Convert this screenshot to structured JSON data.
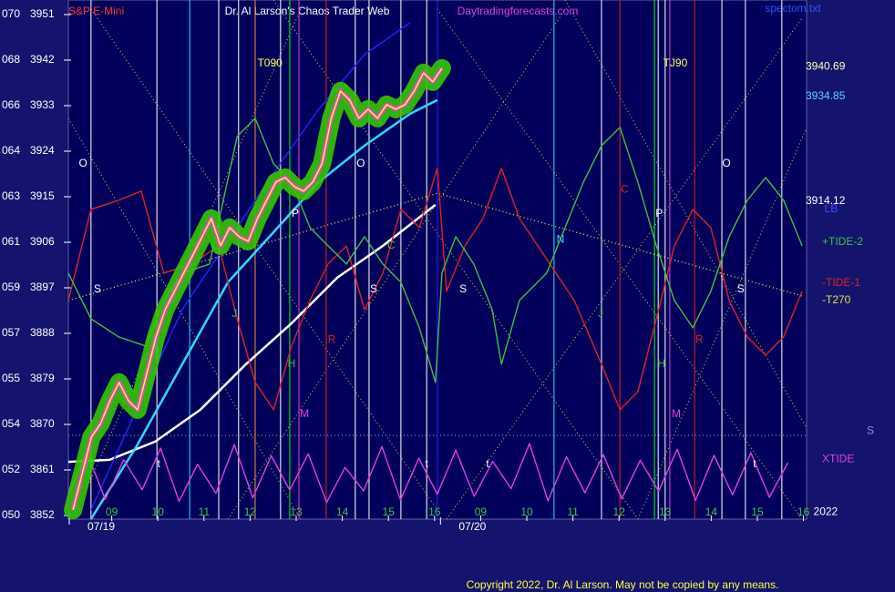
{
  "chart_data": {
    "type": "line",
    "subtitle": "S&P E-Mini",
    "title": "Dr. Al Larson's Chaos Trader Web",
    "source": "Daytradingforecasts.com",
    "file_label": "spectom.txt",
    "copyright": "Copyright 2022, Dr. Al Larson. May not be copied by any means.",
    "xlim": [
      0,
      16
    ],
    "ylim": [
      3852,
      3951
    ],
    "yticks": [
      3852,
      3861,
      3870,
      3879,
      3888,
      3897,
      3906,
      3915,
      3924,
      3933,
      3942,
      3951
    ],
    "ytick_codes": [
      "050",
      "052",
      "054",
      "055",
      "057",
      "059",
      "061",
      "063",
      "064",
      "066",
      "068",
      "070"
    ],
    "xticks": [
      {
        "value": 1,
        "label": "09"
      },
      {
        "value": 2,
        "label": "10"
      },
      {
        "value": 3,
        "label": "11"
      },
      {
        "value": 4,
        "label": "12"
      },
      {
        "value": 5,
        "label": "13"
      },
      {
        "value": 6,
        "label": "14"
      },
      {
        "value": 7,
        "label": "15"
      },
      {
        "value": 8,
        "label": "16"
      },
      {
        "value": 9,
        "label": "09"
      },
      {
        "value": 10,
        "label": "10"
      },
      {
        "value": 11,
        "label": "11"
      },
      {
        "value": 12,
        "label": "12"
      },
      {
        "value": 13,
        "label": "13"
      },
      {
        "value": 14,
        "label": "14"
      },
      {
        "value": 15,
        "label": "15"
      },
      {
        "value": 16,
        "label": "16"
      }
    ],
    "date_ticks": [
      {
        "value": 0,
        "label": "07/19"
      },
      {
        "value": 8.05,
        "label": "07/20"
      }
    ],
    "series": [
      {
        "color": "#ffffff",
        "x": [
          0.06,
          0.95,
          1.94,
          2.92,
          3.91,
          4.9,
          5.89,
          6.88,
          8.02
        ],
        "values": [
          3862.6,
          3863.0,
          3866.6,
          3872.9,
          3881.9,
          3890.0,
          3899.0,
          3905.3,
          3913.4
        ]
      },
      {
        "color": "#2424ff",
        "x": [
          0.55,
          2.53,
          4.51,
          5.49,
          6.48,
          7.47
        ],
        "values": [
          3853.1,
          3892.7,
          3919.7,
          3932.3,
          3943.1,
          3949.4
        ]
      },
      {
        "color": "#30d8ff",
        "x": [
          0.55,
          1.54,
          2.53,
          3.52,
          4.51,
          5.49,
          6.48,
          7.47,
          8.06
        ],
        "values": [
          3851.3,
          3865.7,
          3881.9,
          3898.1,
          3908.0,
          3917.9,
          3925.1,
          3931.4,
          3934.1
        ]
      },
      {
        "name": "-T270",
        "color": "#e0e040",
        "dotted": true,
        "x": [
          0.06,
          8.06,
          15.97
        ],
        "values": [
          3894.5,
          3915.7,
          3895.4
        ]
      },
      {
        "name": "-TIDE-1",
        "color": "#e02020",
        "x": [
          0.06,
          0.55,
          1.15,
          1.64,
          2.13,
          2.73,
          3.32,
          3.72,
          4.11,
          4.51,
          4.9,
          5.3,
          5.69,
          6.09,
          6.48,
          6.88,
          7.27,
          7.67,
          8.06,
          8.26,
          8.66,
          9.05,
          9.45,
          9.84,
          10.24,
          10.63,
          11.03,
          11.62,
          12.02,
          12.41,
          12.81,
          13.2,
          13.6,
          13.99,
          14.39,
          14.78,
          15.18,
          15.57,
          15.97
        ],
        "values": [
          3894.5,
          3912.5,
          3914.3,
          3916.1,
          3899.9,
          3901.7,
          3905.3,
          3890.9,
          3878.3,
          3872.9,
          3885.5,
          3894.5,
          3901.7,
          3905.3,
          3892.7,
          3899.9,
          3912.5,
          3908.9,
          3920.6,
          3896.3,
          3905.3,
          3910.7,
          3920.6,
          3910.7,
          3905.3,
          3899.9,
          3894.5,
          3881.9,
          3872.9,
          3876.5,
          3890.9,
          3905.3,
          3912.5,
          3908.9,
          3894.5,
          3887.3,
          3883.7,
          3887.3,
          3896.3
        ]
      },
      {
        "name": "+TIDE-2",
        "color": "#40c040",
        "x": [
          0.06,
          0.55,
          1.15,
          1.74,
          2.13,
          2.53,
          3.12,
          3.72,
          4.11,
          4.51,
          4.9,
          5.3,
          5.69,
          6.09,
          6.48,
          6.88,
          7.27,
          7.67,
          8.02,
          8.16,
          8.46,
          8.85,
          9.25,
          9.45,
          9.84,
          10.43,
          10.83,
          11.23,
          11.62,
          12.02,
          12.41,
          12.81,
          13.2,
          13.6,
          13.99,
          14.39,
          14.78,
          15.18,
          15.57,
          15.97
        ],
        "values": [
          3899.9,
          3890.9,
          3887.3,
          3885.5,
          3894.5,
          3899.9,
          3901.7,
          3926.9,
          3930.5,
          3921.5,
          3917.9,
          3908.9,
          3905.3,
          3901.7,
          3907.1,
          3901.7,
          3898.1,
          3889.1,
          3878.3,
          3899.9,
          3907.1,
          3901.7,
          3892.7,
          3881.9,
          3894.5,
          3899.9,
          3908.9,
          3917.9,
          3925.1,
          3928.7,
          3917.9,
          3905.3,
          3894.5,
          3889.1,
          3896.3,
          3907.1,
          3914.3,
          3918.8,
          3914.3,
          3905.3
        ]
      },
      {
        "name": "XTIDE",
        "color": "#e040e0",
        "x": [
          0.06,
          0.46,
          0.86,
          1.26,
          1.66,
          2.06,
          2.46,
          2.86,
          3.26,
          3.66,
          4.06,
          4.46,
          4.86,
          5.26,
          5.66,
          6.06,
          6.46,
          6.86,
          7.26,
          7.66,
          8.06,
          8.46,
          8.86,
          9.26,
          9.66,
          10.06,
          10.46,
          10.86,
          11.26,
          11.66,
          12.06,
          12.46,
          12.86,
          13.26,
          13.66,
          14.06,
          14.46,
          14.86,
          15.26,
          15.66
        ],
        "values": [
          3856.0,
          3864.5,
          3855.2,
          3863.0,
          3857.1,
          3865.3,
          3854.8,
          3862.1,
          3856.4,
          3866.0,
          3855.5,
          3863.8,
          3857.0,
          3864.2,
          3854.6,
          3861.5,
          3856.9,
          3865.6,
          3855.1,
          3863.3,
          3856.2,
          3864.9,
          3855.8,
          3862.7,
          3857.3,
          3866.2,
          3854.9,
          3863.6,
          3856.5,
          3864.0,
          3855.3,
          3862.9,
          3856.8,
          3865.1,
          3855.0,
          3863.9,
          3856.1,
          3864.4,
          3855.6,
          3862.4
        ]
      },
      {
        "color": "#ffff00",
        "glow": "#33c800",
        "x": [
          0.16,
          0.36,
          0.56,
          0.76,
          0.96,
          1.16,
          1.36,
          1.56,
          1.76,
          1.96,
          2.16,
          2.36,
          2.56,
          2.76,
          2.96,
          3.16,
          3.36,
          3.56,
          3.76,
          3.96,
          4.16,
          4.36,
          4.56,
          4.76,
          4.96,
          5.16,
          5.36,
          5.56,
          5.76,
          5.96,
          6.16,
          6.36,
          6.56,
          6.76,
          6.96,
          7.16,
          7.36,
          7.56,
          7.76,
          7.96,
          8.16
        ],
        "values": [
          3853.1,
          3860.3,
          3867.5,
          3870.2,
          3874.7,
          3878.3,
          3874.7,
          3872.9,
          3880.1,
          3887.3,
          3892.7,
          3896.3,
          3899.9,
          3903.5,
          3907.1,
          3910.7,
          3905.3,
          3908.9,
          3907.1,
          3906.2,
          3910.7,
          3914.3,
          3917.9,
          3918.8,
          3917.0,
          3916.1,
          3917.9,
          3921.5,
          3930.5,
          3935.9,
          3934.1,
          3930.5,
          3932.3,
          3930.5,
          3933.2,
          3932.3,
          3933.2,
          3935.9,
          3939.5,
          3937.7,
          3940.4
        ]
      }
    ],
    "level_labels": [
      {
        "value": 3940.69,
        "label": "3940.69",
        "color": "#ffffc0"
      },
      {
        "value": 3934.85,
        "label": "3934.85",
        "color": "#60d0ff"
      },
      {
        "value": 3914.12,
        "label": "3914.12",
        "color": "#ffffff"
      }
    ],
    "vlines": [
      {
        "x": 0.55,
        "color": "#ffffff"
      },
      {
        "x": 1.98,
        "color": "#ffffff"
      },
      {
        "x": 2.69,
        "color": "#30d8ff"
      },
      {
        "x": 3.32,
        "color": "#ffffff"
      },
      {
        "x": 3.75,
        "color": "#ffffff"
      },
      {
        "x": 4.11,
        "color": "#ff9020"
      },
      {
        "x": 4.66,
        "color": "#ffffff"
      },
      {
        "x": 4.86,
        "color": "#00ff00"
      },
      {
        "x": 5.06,
        "color": "#e040e0"
      },
      {
        "x": 5.65,
        "color": "#e02020"
      },
      {
        "x": 6.28,
        "color": "#ffffff"
      },
      {
        "x": 6.58,
        "color": "#ffffff"
      },
      {
        "x": 7.27,
        "color": "#ffffff"
      },
      {
        "x": 7.83,
        "color": "#ffffff"
      },
      {
        "x": 8.06,
        "color": "#2424ff"
      },
      {
        "x": 10.59,
        "color": "#30d8ff"
      },
      {
        "x": 11.62,
        "color": "#ffffff"
      },
      {
        "x": 12.02,
        "color": "#e02020"
      },
      {
        "x": 12.77,
        "color": "#00ff00"
      },
      {
        "x": 12.85,
        "color": "#ffffff"
      },
      {
        "x": 13.0,
        "color": "#ffffff"
      },
      {
        "x": 13.1,
        "color": "#e040e0"
      },
      {
        "x": 13.64,
        "color": "#e02020"
      },
      {
        "x": 14.23,
        "color": "#ffffff"
      },
      {
        "x": 14.74,
        "color": "#ffffff"
      },
      {
        "x": 15.53,
        "color": "#ffffff"
      }
    ],
    "annotations": [
      {
        "text": "O",
        "x": 0.38,
        "y": 3921.5,
        "color": "#ffffff"
      },
      {
        "text": "S",
        "x": 0.69,
        "y": 3896.7,
        "color": "#ffffff"
      },
      {
        "text": "t",
        "x": 2.02,
        "y": 3862.1,
        "color": "#ffffff"
      },
      {
        "text": "J",
        "x": 3.66,
        "y": 3891.8,
        "color": "#40c040"
      },
      {
        "text": "T090",
        "x": 4.43,
        "y": 3941.3,
        "color": "#ffff60"
      },
      {
        "text": "H",
        "x": 4.9,
        "y": 3881.9,
        "color": "#40c040"
      },
      {
        "text": "P",
        "x": 4.98,
        "y": 3911.6,
        "color": "#ffffff"
      },
      {
        "text": "M",
        "x": 5.18,
        "y": 3872.0,
        "color": "#e040e0"
      },
      {
        "text": "R",
        "x": 5.77,
        "y": 3886.7,
        "color": "#e02020"
      },
      {
        "text": "O",
        "x": 6.4,
        "y": 3921.5,
        "color": "#ffffff"
      },
      {
        "text": "S",
        "x": 6.68,
        "y": 3896.7,
        "color": "#ffffff"
      },
      {
        "text": "C",
        "x": 7.06,
        "y": 3905.3,
        "color": "#40c040"
      },
      {
        "text": "t",
        "x": 7.83,
        "y": 3862.1,
        "color": "#ffffff"
      },
      {
        "text": "S",
        "x": 8.62,
        "y": 3896.7,
        "color": "#ffffff"
      },
      {
        "text": "t",
        "x": 9.15,
        "y": 3862.1,
        "color": "#ffffff"
      },
      {
        "text": "N",
        "x": 10.73,
        "y": 3906.5,
        "color": "#30d8ff"
      },
      {
        "text": "J",
        "x": 11.6,
        "y": 3891.8,
        "color": "#40c040"
      },
      {
        "text": "C",
        "x": 12.12,
        "y": 3916.4,
        "color": "#e02020"
      },
      {
        "text": "P",
        "x": 12.87,
        "y": 3911.6,
        "color": "#ffffff"
      },
      {
        "text": "H",
        "x": 12.92,
        "y": 3881.9,
        "color": "#40c040"
      },
      {
        "text": "TJ90",
        "x": 13.22,
        "y": 3941.3,
        "color": "#ffff60"
      },
      {
        "text": "M",
        "x": 13.24,
        "y": 3872.0,
        "color": "#e040e0"
      },
      {
        "text": "R",
        "x": 13.74,
        "y": 3886.7,
        "color": "#e02020"
      },
      {
        "text": "O",
        "x": 14.33,
        "y": 3921.5,
        "color": "#ffffff"
      },
      {
        "text": "S",
        "x": 14.64,
        "y": 3896.7,
        "color": "#ffffff"
      },
      {
        "text": "t",
        "x": 14.94,
        "y": 3862.1,
        "color": "#ffffff"
      },
      {
        "text": "2022",
        "x": 16.48,
        "y": 3852.7,
        "color": "#ffffff"
      },
      {
        "text": "LB",
        "x": 16.6,
        "y": 3912.5,
        "color": "#3050ff"
      },
      {
        "text": "S",
        "x": 17.45,
        "y": 3868.7,
        "color": "#9090c8"
      }
    ]
  }
}
